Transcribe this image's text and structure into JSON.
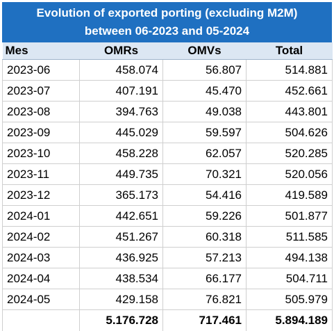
{
  "title": {
    "line1": "Evolution of exported porting (excluding M2M)",
    "line2": "between 06-2023 and 05-2024"
  },
  "colors": {
    "title_background": "#1f70c1",
    "header_background": "#dce7f3",
    "grid_line": "#cfcfcf"
  },
  "headers": {
    "mes": "Mes",
    "omrs": "OMRs",
    "omvs": "OMVs",
    "total": "Total"
  },
  "rows": [
    {
      "mes": "2023-06",
      "omrs": "458.074",
      "omvs": "56.807",
      "total": "514.881"
    },
    {
      "mes": "2023-07",
      "omrs": "407.191",
      "omvs": "45.470",
      "total": "452.661"
    },
    {
      "mes": "2023-08",
      "omrs": "394.763",
      "omvs": "49.038",
      "total": "443.801"
    },
    {
      "mes": "2023-09",
      "omrs": "445.029",
      "omvs": "59.597",
      "total": "504.626"
    },
    {
      "mes": "2023-10",
      "omrs": "458.228",
      "omvs": "62.057",
      "total": "520.285"
    },
    {
      "mes": "2023-11",
      "omrs": "449.735",
      "omvs": "70.321",
      "total": "520.056"
    },
    {
      "mes": "2023-12",
      "omrs": "365.173",
      "omvs": "54.416",
      "total": "419.589"
    },
    {
      "mes": "2024-01",
      "omrs": "442.651",
      "omvs": "59.226",
      "total": "501.877"
    },
    {
      "mes": "2024-02",
      "omrs": "451.267",
      "omvs": "60.318",
      "total": "511.585"
    },
    {
      "mes": "2024-03",
      "omrs": "436.925",
      "omvs": "57.213",
      "total": "494.138"
    },
    {
      "mes": "2024-04",
      "omrs": "438.534",
      "omvs": "66.177",
      "total": "504.711"
    },
    {
      "mes": "2024-05",
      "omrs": "429.158",
      "omvs": "76.821",
      "total": "505.979"
    }
  ],
  "totals": {
    "mes": "",
    "omrs": "5.176.728",
    "omvs": "717.461",
    "total": "5.894.189"
  }
}
